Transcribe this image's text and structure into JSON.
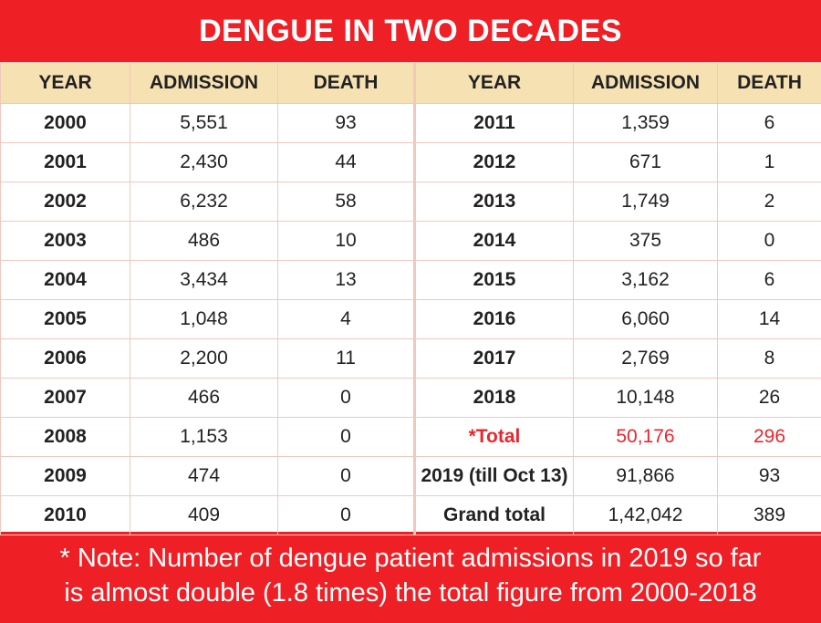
{
  "title": "DENGUE IN TWO DECADES",
  "chart_data": {
    "type": "table",
    "title": "DENGUE IN TWO DECADES",
    "columns": [
      "YEAR",
      "ADMISSION",
      "DEATH",
      "YEAR",
      "ADMISSION",
      "DEATH"
    ],
    "left_rows": [
      {
        "year": "2000",
        "admission": "5,551",
        "death": "93"
      },
      {
        "year": "2001",
        "admission": "2,430",
        "death": "44"
      },
      {
        "year": "2002",
        "admission": "6,232",
        "death": "58"
      },
      {
        "year": "2003",
        "admission": "486",
        "death": "10"
      },
      {
        "year": "2004",
        "admission": "3,434",
        "death": "13"
      },
      {
        "year": "2005",
        "admission": "1,048",
        "death": "4"
      },
      {
        "year": "2006",
        "admission": "2,200",
        "death": "11"
      },
      {
        "year": "2007",
        "admission": "466",
        "death": "0"
      },
      {
        "year": "2008",
        "admission": "1,153",
        "death": "0"
      },
      {
        "year": "2009",
        "admission": "474",
        "death": "0"
      },
      {
        "year": "2010",
        "admission": "409",
        "death": "0"
      }
    ],
    "right_rows": [
      {
        "year": "2011",
        "admission": "1,359",
        "death": "6"
      },
      {
        "year": "2012",
        "admission": "671",
        "death": "1"
      },
      {
        "year": "2013",
        "admission": "1,749",
        "death": "2"
      },
      {
        "year": "2014",
        "admission": "375",
        "death": "0"
      },
      {
        "year": "2015",
        "admission": "3,162",
        "death": "6"
      },
      {
        "year": "2016",
        "admission": "6,060",
        "death": "14"
      },
      {
        "year": "2017",
        "admission": "2,769",
        "death": "8"
      },
      {
        "year": "2018",
        "admission": "10,148",
        "death": "26"
      },
      {
        "year": "*Total",
        "admission": "50,176",
        "death": "296",
        "highlight": true
      },
      {
        "year": "2019 (till Oct 13)",
        "admission": "91,866",
        "death": "93"
      },
      {
        "year": "Grand total",
        "admission": "1,42,042",
        "death": "389"
      }
    ]
  },
  "note": {
    "line1": "* Note: Number of dengue patient admissions in 2019  so far",
    "line2": "is almost double (1.8 times) the total figure from 2000-2018"
  },
  "colors": {
    "background_red": "#ee1f25",
    "header_beige": "#f6e1b3",
    "grid_line": "#f2c7bd",
    "highlight_red": "#e8262d"
  }
}
